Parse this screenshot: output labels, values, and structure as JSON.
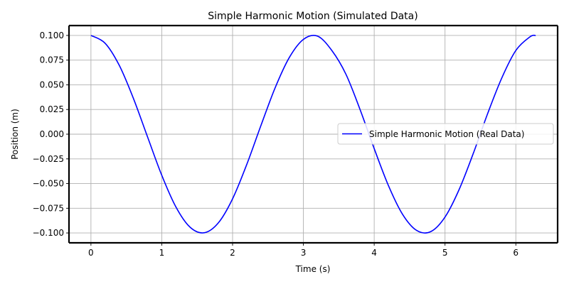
{
  "chart_data": {
    "type": "line",
    "title": "Simple Harmonic Motion (Simulated Data)",
    "xlabel": "Time (s)",
    "ylabel": "Position (m)",
    "xlim": [
      -0.31,
      6.59
    ],
    "ylim": [
      -0.11,
      0.11
    ],
    "x_ticks": [
      0,
      1,
      2,
      3,
      4,
      5,
      6
    ],
    "x_tick_labels": [
      "0",
      "1",
      "2",
      "3",
      "4",
      "5",
      "6"
    ],
    "y_ticks": [
      0.1,
      0.075,
      0.05,
      0.025,
      0.0,
      -0.025,
      -0.05,
      -0.075,
      -0.1
    ],
    "y_tick_labels": [
      "0.100",
      "0.075",
      "0.050",
      "0.025",
      "0.000",
      "−0.025",
      "−0.050",
      "−0.075",
      "−0.100"
    ],
    "grid": true,
    "legend_position": "center-right",
    "series": [
      {
        "name": "Simple Harmonic Motion (Real Data)",
        "color": "#0000ff",
        "x": [
          0.0,
          0.2,
          0.4,
          0.6,
          0.8,
          1.0,
          1.2,
          1.4,
          1.6,
          1.8,
          2.0,
          2.2,
          2.4,
          2.6,
          2.8,
          3.0,
          3.2,
          3.4,
          3.6,
          3.8,
          4.0,
          4.2,
          4.4,
          4.6,
          4.8,
          5.0,
          5.2,
          5.4,
          5.6,
          5.8,
          6.0,
          6.2,
          6.28
        ],
        "y": [
          0.1,
          0.0921,
          0.0697,
          0.0362,
          -0.0029,
          -0.0416,
          -0.0737,
          -0.0942,
          -0.0998,
          -0.0897,
          -0.0654,
          -0.0307,
          0.0087,
          0.0468,
          0.0775,
          0.096,
          0.0993,
          0.0849,
          0.0608,
          0.025,
          -0.0146,
          -0.0519,
          -0.0811,
          -0.0975,
          -0.0986,
          -0.0839,
          -0.0559,
          -0.0193,
          0.0205,
          0.0567,
          0.0848,
          0.0986,
          0.1
        ]
      }
    ]
  }
}
